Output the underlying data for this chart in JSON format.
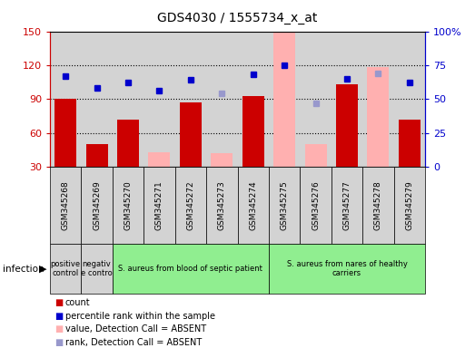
{
  "title": "GDS4030 / 1555734_x_at",
  "samples": [
    "GSM345268",
    "GSM345269",
    "GSM345270",
    "GSM345271",
    "GSM345272",
    "GSM345273",
    "GSM345274",
    "GSM345275",
    "GSM345276",
    "GSM345277",
    "GSM345278",
    "GSM345279"
  ],
  "bar_values": [
    90,
    50,
    72,
    null,
    87,
    null,
    93,
    null,
    null,
    103,
    null,
    72
  ],
  "bar_absent_values": [
    null,
    null,
    null,
    43,
    null,
    42,
    null,
    150,
    50,
    null,
    118,
    null
  ],
  "dot_values": [
    67,
    58,
    62,
    56,
    64,
    null,
    68,
    75,
    null,
    65,
    null,
    62
  ],
  "dot_absent_values": [
    null,
    null,
    null,
    null,
    null,
    54,
    null,
    null,
    47,
    null,
    69,
    null
  ],
  "ylim_left": [
    30,
    150
  ],
  "ylim_right": [
    0,
    100
  ],
  "yticks_left": [
    30,
    60,
    90,
    120,
    150
  ],
  "yticks_right": [
    0,
    25,
    50,
    75,
    100
  ],
  "yticklabels_left": [
    "30",
    "60",
    "90",
    "120",
    "150"
  ],
  "yticklabels_right": [
    "0",
    "25",
    "50",
    "75",
    "100%"
  ],
  "bar_color": "#cc0000",
  "bar_absent_color": "#ffb0b0",
  "dot_color": "#0000cc",
  "dot_absent_color": "#9898cc",
  "bg_color": "#d3d3d3",
  "group_labels": [
    "positive\ncontrol",
    "negativ\ne contro",
    "S. aureus from blood of septic patient",
    "S. aureus from nares of healthy\ncarriers"
  ],
  "group_ranges": [
    [
      0,
      1
    ],
    [
      1,
      2
    ],
    [
      2,
      7
    ],
    [
      7,
      12
    ]
  ],
  "group_colors": [
    "#d3d3d3",
    "#d3d3d3",
    "#90ee90",
    "#90ee90"
  ],
  "infection_label": "infection",
  "legend_items": [
    {
      "label": "count",
      "color": "#cc0000"
    },
    {
      "label": "percentile rank within the sample",
      "color": "#0000cc"
    },
    {
      "label": "value, Detection Call = ABSENT",
      "color": "#ffb0b0"
    },
    {
      "label": "rank, Detection Call = ABSENT",
      "color": "#9898cc"
    }
  ],
  "fig_width": 5.23,
  "fig_height": 3.84,
  "dpi": 100
}
